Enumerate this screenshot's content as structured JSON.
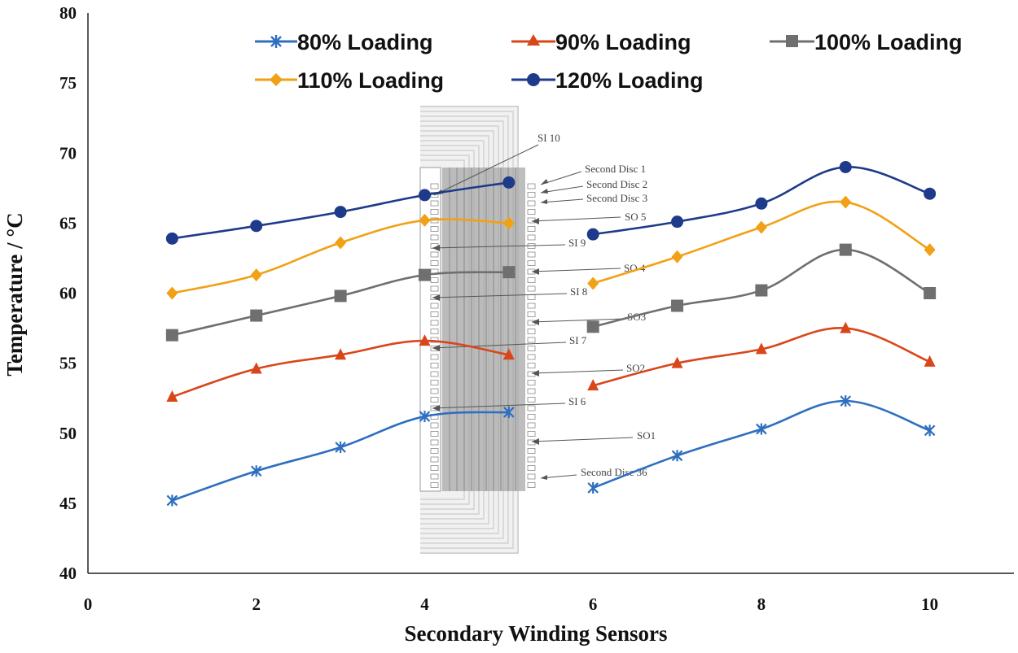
{
  "chart_data": {
    "type": "line",
    "title": "",
    "xlabel": "Secondary Winding Sensors",
    "ylabel": "Temperature / °C",
    "xlim": [
      0,
      11
    ],
    "ylim": [
      40,
      80
    ],
    "x_ticks": [
      "0",
      "2",
      "4",
      "6",
      "8",
      "10"
    ],
    "y_ticks": [
      "40",
      "45",
      "50",
      "55",
      "60",
      "65",
      "70",
      "75",
      "80"
    ],
    "grid": false,
    "legend_position": "top",
    "segments": [
      {
        "x": [
          1,
          2,
          3,
          4,
          5
        ]
      },
      {
        "x": [
          6,
          7,
          8,
          9,
          10
        ]
      }
    ],
    "series": [
      {
        "name": "80% Loading",
        "color": "#2e6fc0",
        "marker": "star",
        "values": [
          45.2,
          47.3,
          49.0,
          51.2,
          51.5,
          46.1,
          48.4,
          50.3,
          52.3,
          50.2
        ]
      },
      {
        "name": "90% Loading",
        "color": "#d9461a",
        "marker": "triangle",
        "values": [
          52.6,
          54.6,
          55.6,
          56.6,
          55.6,
          53.4,
          55.0,
          56.0,
          57.5,
          55.1
        ]
      },
      {
        "name": "100% Loading",
        "color": "#6f6f6f",
        "marker": "square",
        "values": [
          57.0,
          58.4,
          59.8,
          61.3,
          61.5,
          57.6,
          59.1,
          60.2,
          63.1,
          60.0
        ]
      },
      {
        "name": "110% Loading",
        "color": "#f2a015",
        "marker": "diamond",
        "values": [
          60.0,
          61.3,
          63.6,
          65.2,
          65.0,
          60.7,
          62.6,
          64.7,
          66.5,
          63.1
        ]
      },
      {
        "name": "120% Loading",
        "color": "#1e3a8a",
        "marker": "circle",
        "values": [
          63.9,
          64.8,
          65.8,
          67.0,
          67.9,
          64.2,
          65.1,
          66.4,
          69.0,
          67.1
        ]
      }
    ],
    "inset_labels": {
      "left": [
        "SI 10",
        "SI 9",
        "SI 8",
        "SI 7",
        "SI 6"
      ],
      "right": [
        "Second Disc 1",
        "Second Disc 2",
        "Second Disc 3",
        "SO 5",
        "SO 4",
        "SO3",
        "SO2",
        "SO1",
        "Second Disc 36"
      ]
    }
  }
}
